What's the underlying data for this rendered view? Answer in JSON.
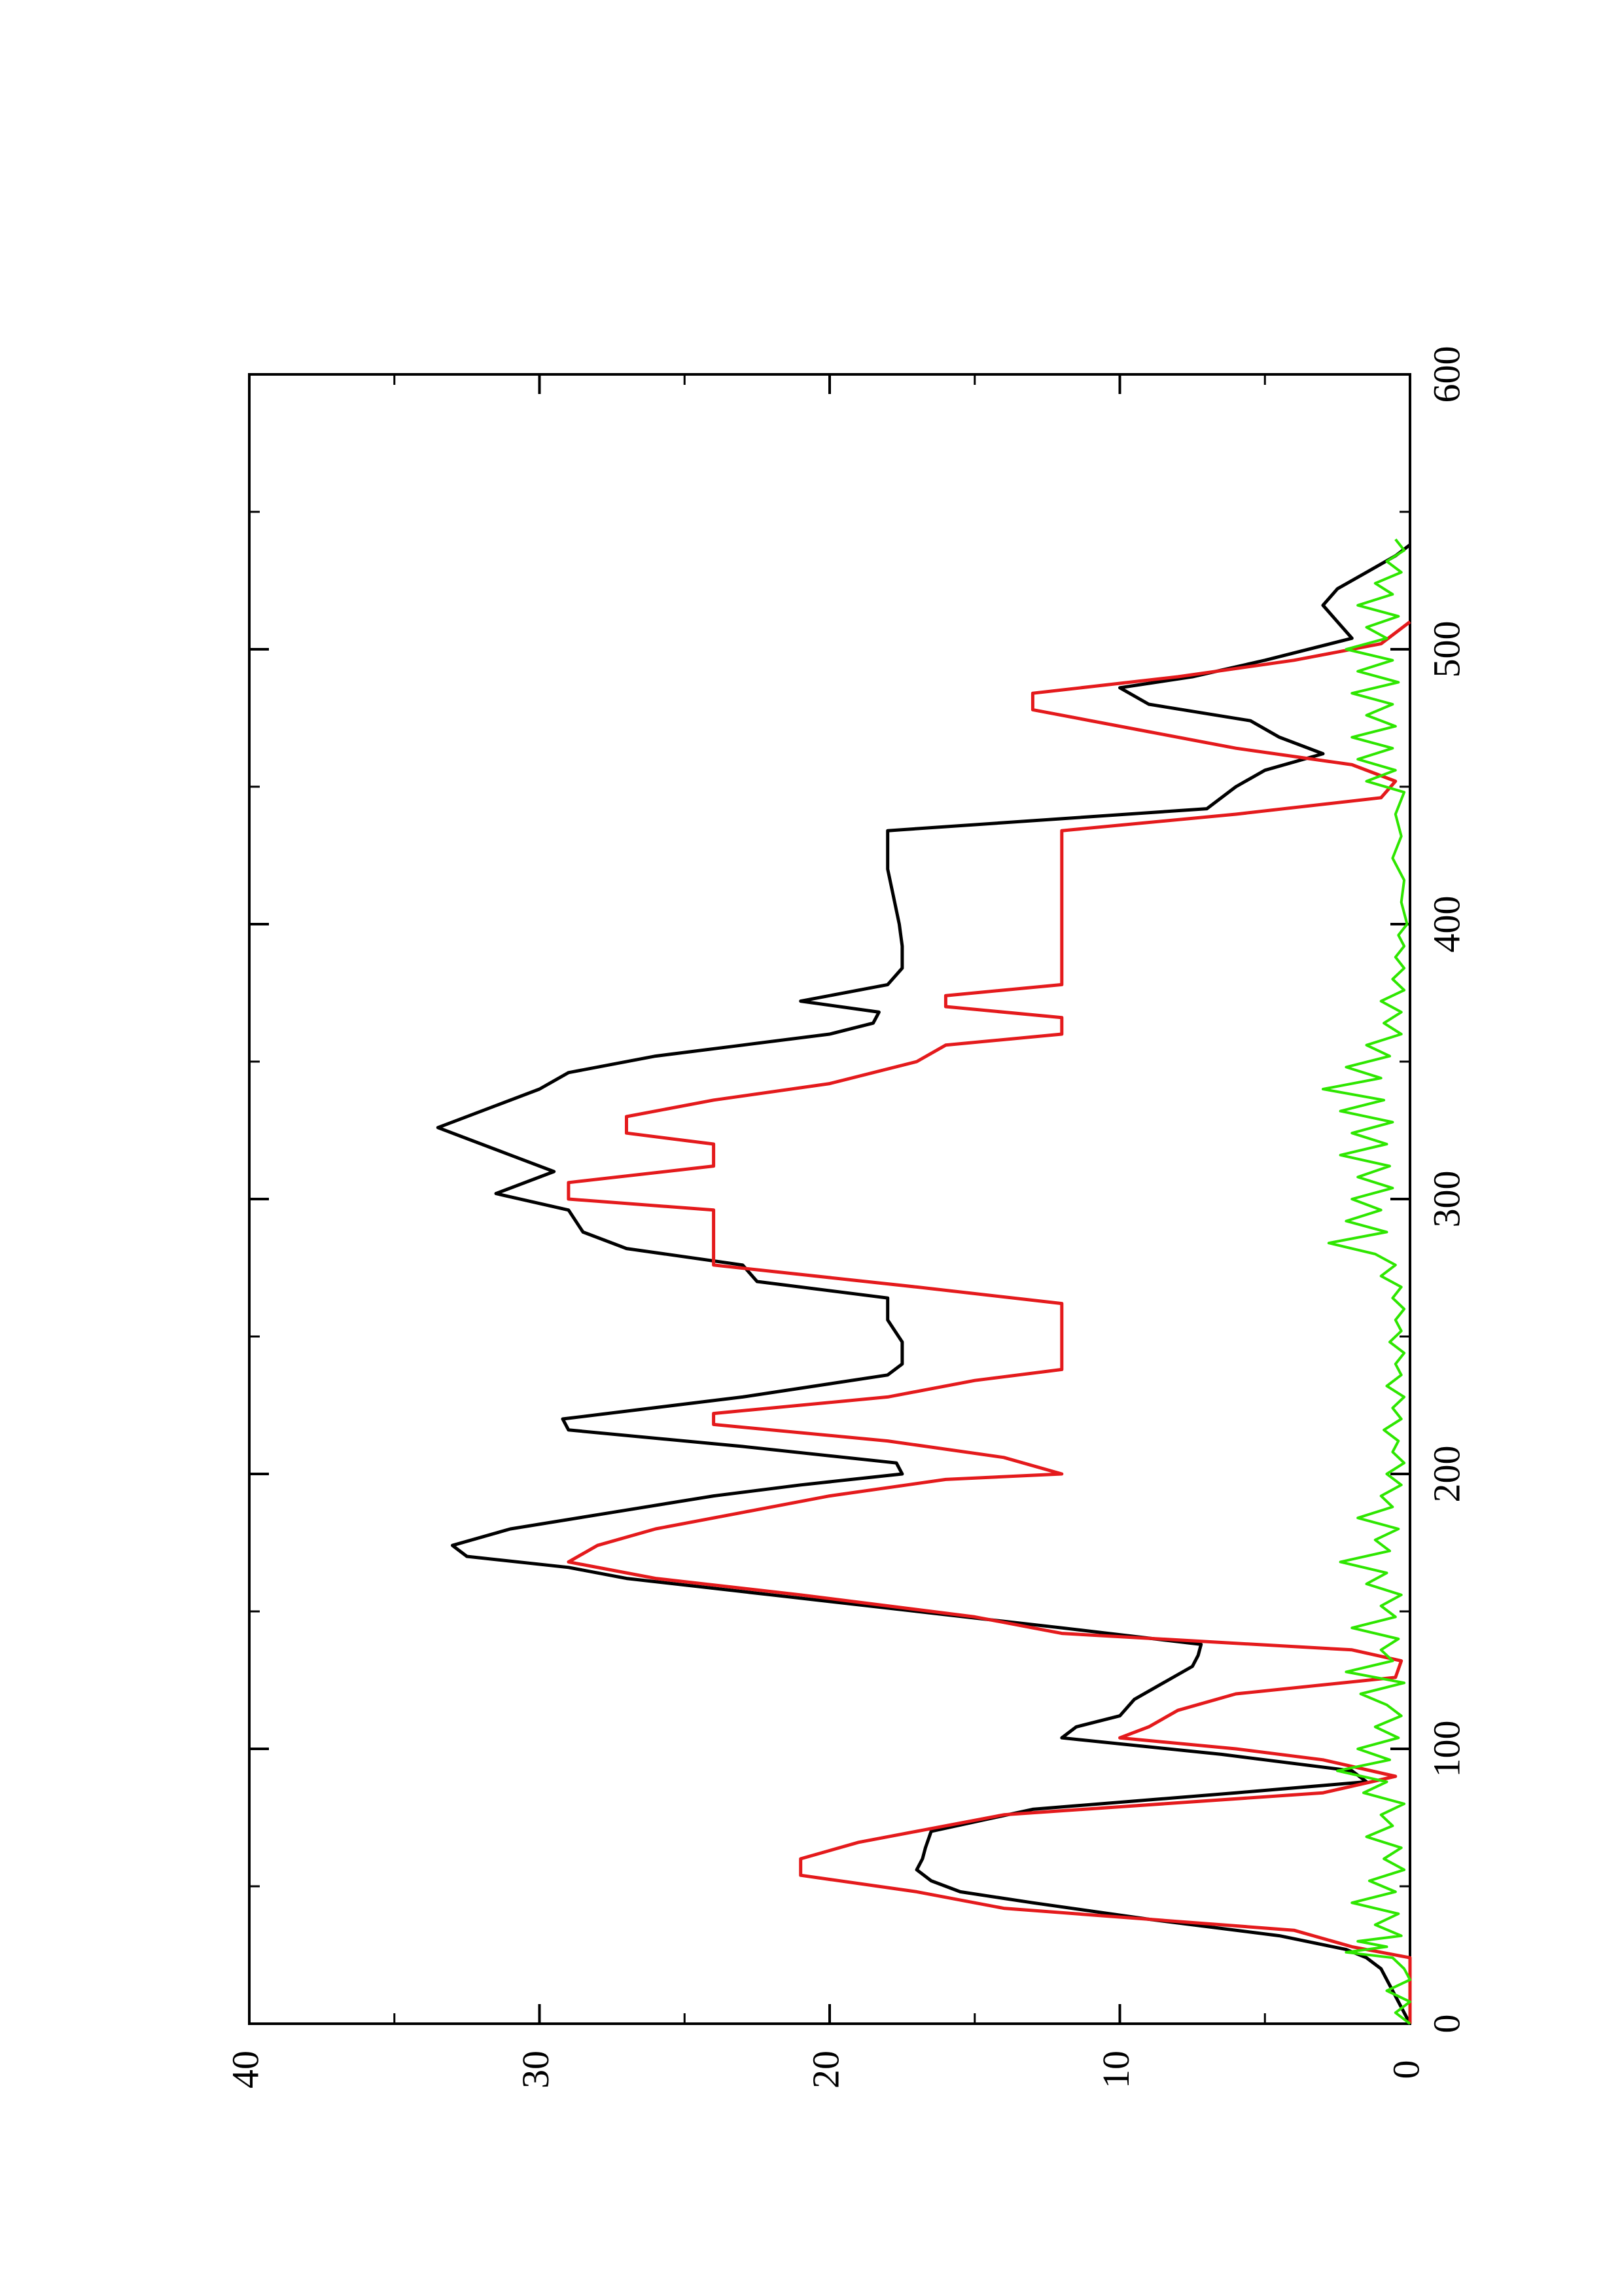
{
  "chart_data": {
    "type": "line",
    "title": "",
    "xlabel": "",
    "ylabel": "",
    "xlim": [
      0,
      600
    ],
    "ylim": [
      0,
      40
    ],
    "x_ticks": [
      0,
      100,
      200,
      300,
      400,
      500,
      600
    ],
    "y_ticks": [
      0,
      10,
      20,
      30,
      40
    ],
    "x_minor_ticks": [
      50,
      150,
      250,
      350,
      450,
      550
    ],
    "y_minor_ticks": [
      5,
      15,
      25,
      35
    ],
    "orientation": "rotated-90-ccw",
    "grid": false,
    "legend": "none",
    "series": [
      {
        "color": "#000000",
        "style": "line",
        "points": [
          [
            0,
            0
          ],
          [
            6,
            0.3
          ],
          [
            12,
            0.6
          ],
          [
            20,
            1.0
          ],
          [
            24,
            1.5
          ],
          [
            27,
            2.2
          ],
          [
            32,
            4.5
          ],
          [
            38,
            9.0
          ],
          [
            44,
            13.0
          ],
          [
            48,
            15.5
          ],
          [
            52,
            16.5
          ],
          [
            56,
            17.0
          ],
          [
            60,
            16.8
          ],
          [
            64,
            16.7
          ],
          [
            70,
            16.5
          ],
          [
            78,
            13.0
          ],
          [
            84,
            6.0
          ],
          [
            88,
            1.5
          ],
          [
            92,
            2.0
          ],
          [
            98,
            6.5
          ],
          [
            104,
            12.0
          ],
          [
            108,
            11.5
          ],
          [
            112,
            10.0
          ],
          [
            118,
            9.5
          ],
          [
            124,
            8.5
          ],
          [
            130,
            7.5
          ],
          [
            134,
            7.3
          ],
          [
            138,
            7.2
          ],
          [
            144,
            12.0
          ],
          [
            150,
            17.0
          ],
          [
            156,
            22.0
          ],
          [
            162,
            27.0
          ],
          [
            166,
            29.0
          ],
          [
            170,
            32.5
          ],
          [
            174,
            33.0
          ],
          [
            180,
            31.0
          ],
          [
            186,
            27.5
          ],
          [
            192,
            24.0
          ],
          [
            196,
            21.0
          ],
          [
            200,
            17.5
          ],
          [
            204,
            17.7
          ],
          [
            210,
            23.0
          ],
          [
            216,
            29.0
          ],
          [
            220,
            29.2
          ],
          [
            228,
            23.0
          ],
          [
            236,
            18.0
          ],
          [
            240,
            17.5
          ],
          [
            248,
            17.5
          ],
          [
            256,
            18.0
          ],
          [
            264,
            18.0
          ],
          [
            270,
            22.5
          ],
          [
            276,
            23.0
          ],
          [
            282,
            27.0
          ],
          [
            288,
            28.5
          ],
          [
            296,
            29.0
          ],
          [
            302,
            31.5
          ],
          [
            310,
            29.5
          ],
          [
            316,
            31.0
          ],
          [
            322,
            32.5
          ],
          [
            326,
            33.5
          ],
          [
            334,
            31.5
          ],
          [
            340,
            30.0
          ],
          [
            346,
            29.0
          ],
          [
            352,
            26.0
          ],
          [
            356,
            23.0
          ],
          [
            360,
            20.0
          ],
          [
            364,
            18.5
          ],
          [
            368,
            18.3
          ],
          [
            372,
            21.0
          ],
          [
            378,
            18.0
          ],
          [
            384,
            17.5
          ],
          [
            392,
            17.5
          ],
          [
            400,
            17.6
          ],
          [
            410,
            17.8
          ],
          [
            420,
            18.0
          ],
          [
            434,
            18.0
          ],
          [
            442,
            7.0
          ],
          [
            450,
            6.0
          ],
          [
            456,
            5.0
          ],
          [
            462,
            3.0
          ],
          [
            468,
            4.5
          ],
          [
            474,
            5.5
          ],
          [
            480,
            9.0
          ],
          [
            486,
            10.0
          ],
          [
            490,
            7.5
          ],
          [
            496,
            5.0
          ],
          [
            504,
            2.0
          ],
          [
            510,
            2.5
          ],
          [
            516,
            3.0
          ],
          [
            522,
            2.5
          ],
          [
            528,
            1.5
          ],
          [
            534,
            0.5
          ],
          [
            538,
            0.0
          ]
        ]
      },
      {
        "color": "#e41a1c",
        "style": "step-interpolated",
        "points": [
          [
            0,
            0
          ],
          [
            24,
            0
          ],
          [
            28,
            2.0
          ],
          [
            34,
            4.0
          ],
          [
            38,
            9.0
          ],
          [
            42,
            14.0
          ],
          [
            48,
            17.0
          ],
          [
            54,
            21.0
          ],
          [
            60,
            21.0
          ],
          [
            66,
            19.0
          ],
          [
            70,
            17.0
          ],
          [
            76,
            14.0
          ],
          [
            84,
            3.0
          ],
          [
            90,
            0.5
          ],
          [
            96,
            3.0
          ],
          [
            100,
            6.0
          ],
          [
            104,
            10.0
          ],
          [
            108,
            9.0
          ],
          [
            114,
            8.0
          ],
          [
            120,
            6.0
          ],
          [
            126,
            0.5
          ],
          [
            132,
            0.3
          ],
          [
            136,
            2.0
          ],
          [
            142,
            12.0
          ],
          [
            148,
            15.0
          ],
          [
            156,
            21.0
          ],
          [
            162,
            26.0
          ],
          [
            168,
            29.0
          ],
          [
            174,
            28.0
          ],
          [
            180,
            26.0
          ],
          [
            186,
            23.0
          ],
          [
            192,
            20.0
          ],
          [
            198,
            16.0
          ],
          [
            200,
            12.0
          ],
          [
            206,
            14.0
          ],
          [
            212,
            18.0
          ],
          [
            218,
            24.0
          ],
          [
            222,
            24.0
          ],
          [
            228,
            18.0
          ],
          [
            234,
            15.0
          ],
          [
            238,
            12.0
          ],
          [
            262,
            12.0
          ],
          [
            268,
            17.0
          ],
          [
            276,
            24.0
          ],
          [
            296,
            24.0
          ],
          [
            300,
            29.0
          ],
          [
            306,
            29.0
          ],
          [
            312,
            24.0
          ],
          [
            320,
            24.0
          ],
          [
            324,
            27.0
          ],
          [
            330,
            27.0
          ],
          [
            336,
            24.0
          ],
          [
            342,
            20.0
          ],
          [
            350,
            17.0
          ],
          [
            356,
            16.0
          ],
          [
            360,
            12.0
          ],
          [
            366,
            12.0
          ],
          [
            370,
            16.0
          ],
          [
            374,
            16.0
          ],
          [
            378,
            12.0
          ],
          [
            434,
            12.0
          ],
          [
            440,
            6.0
          ],
          [
            446,
            1.0
          ],
          [
            452,
            0.5
          ],
          [
            458,
            2.0
          ],
          [
            464,
            6.0
          ],
          [
            470,
            9.0
          ],
          [
            478,
            13.0
          ],
          [
            484,
            13.0
          ],
          [
            490,
            8.0
          ],
          [
            496,
            4.0
          ],
          [
            502,
            1.0
          ],
          [
            510,
            0.0
          ]
        ]
      },
      {
        "color": "#2ee600",
        "style": "noisy-line",
        "points": [
          [
            0,
            0
          ],
          [
            4,
            0.5
          ],
          [
            8,
            0
          ],
          [
            12,
            0.8
          ],
          [
            16,
            0
          ],
          [
            20,
            0.2
          ],
          [
            24,
            0.6
          ],
          [
            26,
            2.2
          ],
          [
            28,
            0.8
          ],
          [
            30,
            1.8
          ],
          [
            32,
            0.3
          ],
          [
            36,
            1.2
          ],
          [
            40,
            0.4
          ],
          [
            44,
            2.0
          ],
          [
            48,
            0.5
          ],
          [
            52,
            1.4
          ],
          [
            56,
            0.2
          ],
          [
            60,
            0.9
          ],
          [
            64,
            0.3
          ],
          [
            68,
            1.5
          ],
          [
            72,
            0.6
          ],
          [
            76,
            1.0
          ],
          [
            80,
            0.2
          ],
          [
            84,
            1.6
          ],
          [
            88,
            0.8
          ],
          [
            92,
            2.5
          ],
          [
            96,
            0.7
          ],
          [
            100,
            1.8
          ],
          [
            104,
            0.4
          ],
          [
            108,
            1.2
          ],
          [
            112,
            0.3
          ],
          [
            116,
            0.8
          ],
          [
            120,
            1.7
          ],
          [
            124,
            0.2
          ],
          [
            128,
            2.2
          ],
          [
            132,
            0.6
          ],
          [
            136,
            1.0
          ],
          [
            140,
            0.4
          ],
          [
            144,
            2.0
          ],
          [
            148,
            0.5
          ],
          [
            152,
            1.0
          ],
          [
            156,
            0.3
          ],
          [
            160,
            1.5
          ],
          [
            164,
            0.8
          ],
          [
            168,
            2.4
          ],
          [
            172,
            0.7
          ],
          [
            176,
            1.2
          ],
          [
            180,
            0.4
          ],
          [
            184,
            1.8
          ],
          [
            188,
            0.6
          ],
          [
            192,
            1.0
          ],
          [
            196,
            0.3
          ],
          [
            200,
            0.8
          ],
          [
            204,
            0.2
          ],
          [
            208,
            0.6
          ],
          [
            212,
            0.4
          ],
          [
            216,
            0.9
          ],
          [
            220,
            0.3
          ],
          [
            224,
            0.6
          ],
          [
            228,
            0.2
          ],
          [
            232,
            0.8
          ],
          [
            236,
            0.3
          ],
          [
            240,
            0.5
          ],
          [
            244,
            0.2
          ],
          [
            248,
            0.7
          ],
          [
            252,
            0.3
          ],
          [
            256,
            0.5
          ],
          [
            260,
            0.2
          ],
          [
            264,
            0.6
          ],
          [
            268,
            0.3
          ],
          [
            272,
            1.0
          ],
          [
            276,
            0.5
          ],
          [
            280,
            1.2
          ],
          [
            284,
            2.8
          ],
          [
            288,
            0.8
          ],
          [
            292,
            2.2
          ],
          [
            296,
            1.0
          ],
          [
            300,
            2.0
          ],
          [
            304,
            0.6
          ],
          [
            308,
            1.8
          ],
          [
            312,
            0.7
          ],
          [
            316,
            2.4
          ],
          [
            320,
            0.8
          ],
          [
            324,
            2.0
          ],
          [
            328,
            0.6
          ],
          [
            332,
            2.4
          ],
          [
            336,
            0.9
          ],
          [
            340,
            3.0
          ],
          [
            344,
            1.0
          ],
          [
            348,
            2.2
          ],
          [
            352,
            0.7
          ],
          [
            356,
            1.5
          ],
          [
            360,
            0.3
          ],
          [
            364,
            0.9
          ],
          [
            368,
            0.3
          ],
          [
            372,
            1.0
          ],
          [
            376,
            0.2
          ],
          [
            380,
            0.6
          ],
          [
            384,
            0.2
          ],
          [
            388,
            0.5
          ],
          [
            392,
            0.2
          ],
          [
            396,
            0.4
          ],
          [
            400,
            0.1
          ],
          [
            408,
            0.3
          ],
          [
            416,
            0.2
          ],
          [
            424,
            0.6
          ],
          [
            432,
            0.3
          ],
          [
            440,
            0.5
          ],
          [
            448,
            0.2
          ],
          [
            452,
            1.5
          ],
          [
            456,
            0.5
          ],
          [
            460,
            1.8
          ],
          [
            464,
            0.6
          ],
          [
            468,
            2.0
          ],
          [
            472,
            0.5
          ],
          [
            476,
            1.5
          ],
          [
            480,
            0.6
          ],
          [
            484,
            2.0
          ],
          [
            488,
            0.4
          ],
          [
            492,
            1.8
          ],
          [
            496,
            0.6
          ],
          [
            500,
            2.2
          ],
          [
            504,
            0.8
          ],
          [
            508,
            1.5
          ],
          [
            512,
            0.4
          ],
          [
            516,
            1.8
          ],
          [
            520,
            0.6
          ],
          [
            524,
            1.2
          ],
          [
            528,
            0.3
          ],
          [
            532,
            0.8
          ],
          [
            536,
            0.2
          ],
          [
            540,
            0.5
          ]
        ]
      }
    ]
  }
}
